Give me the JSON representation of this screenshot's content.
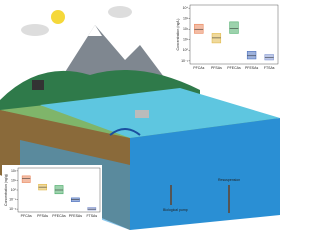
{
  "insets": [
    {
      "y_label": "Concentration (ng/L)",
      "categories": [
        "PFCAs",
        "PFSAs",
        "PFECAs",
        "PFESAs",
        "FTSAs"
      ],
      "colors": [
        "#e8794a",
        "#e0b43a",
        "#3aa55a",
        "#3b63b8",
        "#7a8fd0"
      ],
      "log": true,
      "ylim": [
        0.05,
        20000
      ],
      "yticks": [
        {
          "value": 0.1,
          "label": "10⁻¹"
        },
        {
          "value": 1,
          "label": "10⁰"
        },
        {
          "value": 10,
          "label": "10¹"
        },
        {
          "value": 100,
          "label": "10²"
        },
        {
          "value": 1000,
          "label": "10³"
        },
        {
          "value": 10000,
          "label": "10⁴"
        }
      ],
      "q1": [
        40,
        5,
        40,
        0.15,
        0.12
      ],
      "median": [
        100,
        15,
        120,
        0.3,
        0.2
      ],
      "q3": [
        300,
        40,
        500,
        0.8,
        0.4
      ]
    },
    {
      "y_label": "Concentration (ng/g)",
      "categories": [
        "PFCAs",
        "PFSAs",
        "PFECAs",
        "PFESAs",
        "FTSAs"
      ],
      "colors": [
        "#e8794a",
        "#e0b43a",
        "#3aa55a",
        "#3b63b8",
        "#7a8fd0"
      ],
      "log": true,
      "ylim": [
        0.005,
        200
      ],
      "yticks": [
        {
          "value": 0.01,
          "label": "10⁻²"
        },
        {
          "value": 0.1,
          "label": "10⁻¹"
        },
        {
          "value": 1,
          "label": "10⁰"
        },
        {
          "value": 10,
          "label": "10¹"
        },
        {
          "value": 100,
          "label": "10²"
        }
      ],
      "q1": [
        6,
        1,
        0.4,
        0.06,
        0.008
      ],
      "median": [
        15,
        2,
        1,
        0.1,
        0.01
      ],
      "q3": [
        30,
        4,
        3,
        0.15,
        0.015
      ]
    }
  ],
  "labels": {
    "biological_pump": "Biological pump",
    "resuspension": "Resuspension"
  }
}
